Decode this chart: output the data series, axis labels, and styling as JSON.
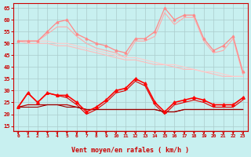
{
  "background_color": "#c8f0f0",
  "grid_color": "#aacccc",
  "x_labels": [
    "0",
    "1",
    "2",
    "3",
    "4",
    "5",
    "6",
    "7",
    "8",
    "9",
    "10",
    "11",
    "12",
    "13",
    "14",
    "15",
    "16",
    "17",
    "18",
    "19",
    "20",
    "21",
    "22",
    "23"
  ],
  "xlabel": "Vent moyen/en rafales ( km/h )",
  "ylim": [
    13,
    67
  ],
  "yticks": [
    15,
    20,
    25,
    30,
    35,
    40,
    45,
    50,
    55,
    60,
    65
  ],
  "lines": [
    {
      "y": [
        51,
        51,
        51,
        55,
        59,
        60,
        54,
        52,
        50,
        49,
        47,
        46,
        52,
        52,
        55,
        65,
        60,
        62,
        62,
        52,
        47,
        49,
        53,
        38
      ],
      "color": "#ff8888",
      "lw": 0.9,
      "marker": "^",
      "ms": 2.0
    },
    {
      "y": [
        51,
        51,
        51,
        54,
        57,
        57,
        53,
        50,
        48,
        47,
        46,
        44,
        51,
        51,
        53,
        63,
        58,
        61,
        61,
        51,
        46,
        47,
        52,
        37
      ],
      "color": "#ffaaaa",
      "lw": 0.8,
      "marker": null,
      "ms": 0
    },
    {
      "y": [
        51,
        50,
        50,
        50,
        49,
        49,
        48,
        47,
        46,
        45,
        44,
        43,
        43,
        42,
        41,
        41,
        40,
        39,
        39,
        38,
        37,
        36,
        36,
        36
      ],
      "color": "#ffbbbb",
      "lw": 0.8,
      "marker": null,
      "ms": 0
    },
    {
      "y": [
        51,
        51,
        51,
        51,
        50,
        50,
        49,
        48,
        47,
        46,
        45,
        44,
        44,
        43,
        42,
        41,
        41,
        40,
        39,
        38,
        38,
        37,
        36,
        36
      ],
      "color": "#ffcccc",
      "lw": 0.8,
      "marker": null,
      "ms": 0
    },
    {
      "y": [
        23,
        29,
        25,
        29,
        28,
        28,
        25,
        21,
        23,
        26,
        30,
        31,
        35,
        33,
        25,
        21,
        25,
        26,
        27,
        26,
        24,
        24,
        24,
        27
      ],
      "color": "#ff0000",
      "lw": 1.2,
      "marker": "^",
      "ms": 2.5
    },
    {
      "y": [
        23,
        29,
        25,
        29,
        28,
        27,
        24,
        20,
        22,
        25,
        29,
        30,
        34,
        32,
        24,
        20,
        24,
        25,
        26,
        25,
        23,
        23,
        23,
        26
      ],
      "color": "#dd0000",
      "lw": 0.8,
      "marker": null,
      "ms": 0
    },
    {
      "y": [
        23,
        24,
        24,
        24,
        24,
        24,
        23,
        22,
        22,
        22,
        22,
        22,
        22,
        22,
        22,
        21,
        21,
        22,
        22,
        22,
        22,
        22,
        22,
        22
      ],
      "color": "#bb0000",
      "lw": 0.9,
      "marker": null,
      "ms": 0
    },
    {
      "y": [
        23,
        23,
        23,
        24,
        24,
        23,
        23,
        22,
        22,
        22,
        22,
        22,
        22,
        22,
        22,
        21,
        21,
        22,
        22,
        22,
        22,
        22,
        22,
        22
      ],
      "color": "#990000",
      "lw": 0.8,
      "marker": null,
      "ms": 0
    }
  ],
  "arrow_color": "#cc0000",
  "tick_color": "#cc0000",
  "spine_color": "#cc0000"
}
